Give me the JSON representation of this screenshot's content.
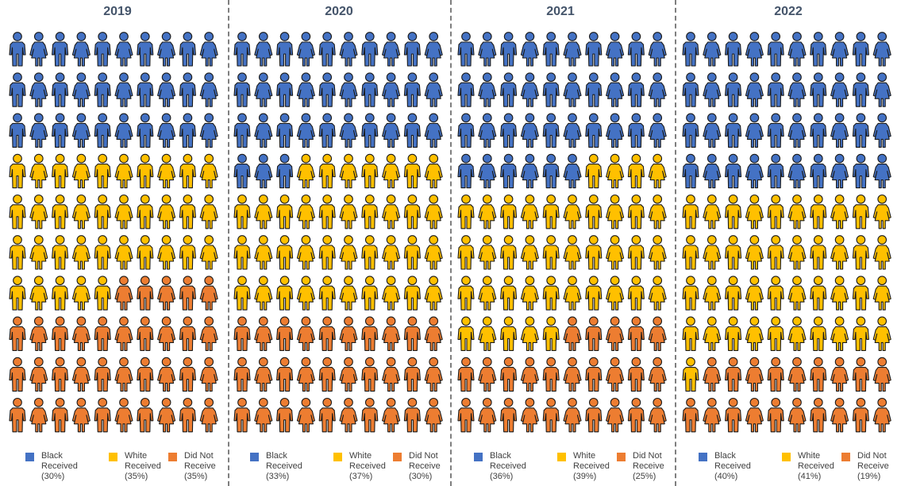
{
  "chart_data": [
    {
      "type": "pictogram",
      "title": "2019",
      "series": [
        {
          "name": "Black Received",
          "value": 30,
          "color": "#4472c4"
        },
        {
          "name": "White Received",
          "value": 35,
          "color": "#ffc000"
        },
        {
          "name": "Did Not Receive",
          "value": 35,
          "color": "#ed7d31"
        }
      ],
      "legend": [
        {
          "label": "Black\nReceived\n(30%)"
        },
        {
          "label": "White\nReceived\n(35%)"
        },
        {
          "label": "Did Not\nReceive\n(35%)"
        }
      ]
    },
    {
      "type": "pictogram",
      "title": "2020",
      "series": [
        {
          "name": "Black Received",
          "value": 33,
          "color": "#4472c4"
        },
        {
          "name": "White Received",
          "value": 37,
          "color": "#ffc000"
        },
        {
          "name": "Did Not Receive",
          "value": 30,
          "color": "#ed7d31"
        }
      ],
      "legend": [
        {
          "label": "Black\nReceived\n(33%)"
        },
        {
          "label": "White\nReceived\n(37%)"
        },
        {
          "label": "Did Not\nReceive\n(30%)"
        }
      ]
    },
    {
      "type": "pictogram",
      "title": "2021",
      "series": [
        {
          "name": "Black Received",
          "value": 36,
          "color": "#4472c4"
        },
        {
          "name": "White Received",
          "value": 39,
          "color": "#ffc000"
        },
        {
          "name": "Did Not Receive",
          "value": 25,
          "color": "#ed7d31"
        }
      ],
      "legend": [
        {
          "label": "Black\nReceived\n(36%)"
        },
        {
          "label": "White\nReceived\n(39%)"
        },
        {
          "label": "Did Not\nReceive\n(25%)"
        }
      ]
    },
    {
      "type": "pictogram",
      "title": "2022",
      "series": [
        {
          "name": "Black Received",
          "value": 40,
          "color": "#4472c4"
        },
        {
          "name": "White Received",
          "value": 41,
          "color": "#ffc000"
        },
        {
          "name": "Did Not Receive",
          "value": 19,
          "color": "#ed7d31"
        }
      ],
      "legend": [
        {
          "label": "Black\nReceived\n(40%)"
        },
        {
          "label": "White\nReceived\n(41%)"
        },
        {
          "label": "Did Not\nReceive\n(19%)"
        }
      ]
    }
  ]
}
